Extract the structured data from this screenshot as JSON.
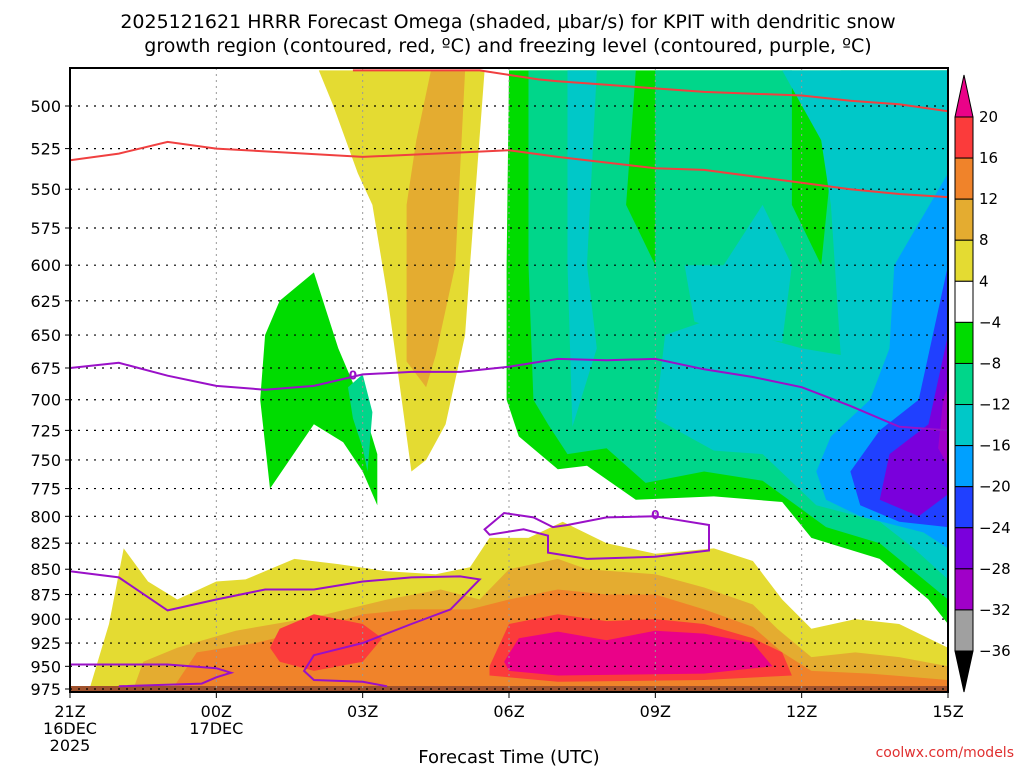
{
  "chart_data": {
    "type": "heatmap",
    "title_lines": [
      "2025121621 HRRR Forecast Omega (shaded, µbar/s) for KPIT with dendritic snow",
      "growth region (contoured, red, ºC) and freezing level (contoured, purple, ºC)"
    ],
    "xlabel": "Forecast Time (UTC)",
    "ylabel": "",
    "x_ticks": [
      {
        "hour": 0,
        "label": [
          "21Z",
          "16DEC",
          "2025"
        ]
      },
      {
        "hour": 3,
        "label": [
          "00Z",
          "17DEC"
        ]
      },
      {
        "hour": 6,
        "label": [
          "03Z"
        ]
      },
      {
        "hour": 9,
        "label": [
          "06Z"
        ]
      },
      {
        "hour": 12,
        "label": [
          "09Z"
        ]
      },
      {
        "hour": 15,
        "label": [
          "12Z"
        ]
      },
      {
        "hour": 18,
        "label": [
          "15Z"
        ]
      }
    ],
    "x_range_hours": [
      0,
      18
    ],
    "y_ticks": [
      500,
      525,
      550,
      575,
      600,
      625,
      650,
      675,
      700,
      725,
      750,
      775,
      800,
      825,
      850,
      875,
      900,
      925,
      950,
      975
    ],
    "y_range_hPa": [
      480,
      990
    ],
    "y_axis": "pressure (hPa), inverted, log scale",
    "grid": true,
    "colorbar": {
      "placement": "right",
      "levels": [
        -36,
        -32,
        -28,
        -24,
        -20,
        -16,
        -12,
        -8,
        -4,
        4,
        8,
        12,
        16,
        20
      ],
      "tick_labels": [
        "20",
        "16",
        "12",
        "8",
        "4",
        "−4",
        "−8",
        "−12",
        "−16",
        "−20",
        "−24",
        "−28",
        "−32",
        "−36"
      ],
      "colors": {
        "above_20": "#ea0288",
        "16_20": "#fb3b3b",
        "12_16": "#f0832a",
        "8_12": "#e4ac30",
        "4_8": "#e4db32",
        "-4_4": "#ffffff",
        "-8_-4": "#00dc00",
        "-12_-8": "#00d68a",
        "-16_-12": "#00c8c8",
        "-20_-16": "#00a0ff",
        "-24_-20": "#2040ff",
        "-28_-24": "#7a00dc",
        "-32_-28": "#a000c8",
        "-36_-32": "#a0a0a0",
        "below_-36": "#000000"
      }
    },
    "terrain_color": "#a0522d",
    "omega_regions": [
      {
        "name": "upper-ascent-positive-plume",
        "levels": [
          "4_8",
          "8_12"
        ],
        "hours": [
          5.0,
          8.6
        ],
        "pressure": [
          480,
          740
        ]
      },
      {
        "name": "upper-descent-green-cell",
        "levels": [
          "-8_-4",
          "-12_-8"
        ],
        "hours": [
          3.8,
          6.6
        ],
        "pressure": [
          620,
          785
        ]
      },
      {
        "name": "upper-right-descent-area",
        "levels": [
          "-8_-4",
          "-12_-8",
          "-16_-12",
          "-20_-16",
          "-24_-20",
          "-28_-24",
          "-32_-28"
        ],
        "hours": [
          8.9,
          18
        ],
        "pressure": [
          480,
          900
        ]
      },
      {
        "name": "low-level-ascent-left",
        "levels": [
          "4_8",
          "8_12",
          "12_16",
          "16_20"
        ],
        "hours": [
          0.5,
          9.0
        ],
        "pressure": [
          815,
          975
        ]
      },
      {
        "name": "low-level-ascent-right",
        "levels": [
          "4_8",
          "8_12",
          "12_16",
          "16_20",
          "above_20"
        ],
        "hours": [
          8.6,
          18
        ],
        "pressure": [
          800,
          975
        ]
      }
    ],
    "dendritic_growth_contours": [
      {
        "name": "-12C",
        "color": "#f04040",
        "points": [
          [
            0,
            532
          ],
          [
            1,
            528
          ],
          [
            2,
            521
          ],
          [
            3,
            525
          ],
          [
            6,
            530
          ],
          [
            9,
            526
          ],
          [
            10,
            530
          ],
          [
            12,
            537
          ],
          [
            13,
            538
          ],
          [
            15,
            546
          ],
          [
            16,
            550
          ],
          [
            17,
            553
          ],
          [
            18,
            555
          ]
        ]
      },
      {
        "name": "-18C",
        "color": "#f04040",
        "points": [
          [
            5.8,
            480
          ],
          [
            8.4,
            480
          ],
          [
            9.6,
            485
          ],
          [
            10,
            486
          ],
          [
            11,
            488
          ],
          [
            12,
            490
          ],
          [
            13,
            492
          ],
          [
            15,
            494
          ],
          [
            16,
            497
          ],
          [
            17,
            499
          ],
          [
            18,
            503
          ]
        ]
      }
    ],
    "freezing_level_contours": [
      {
        "name": "0C upper",
        "color": "#9a10c8",
        "label": "0",
        "points": [
          [
            0,
            675
          ],
          [
            1,
            671
          ],
          [
            2,
            681
          ],
          [
            3,
            689
          ],
          [
            4,
            692
          ],
          [
            5,
            689
          ],
          [
            6,
            680
          ],
          [
            7,
            678
          ],
          [
            8,
            678
          ],
          [
            9,
            674
          ],
          [
            10,
            668
          ],
          [
            11,
            669
          ],
          [
            12,
            668
          ],
          [
            13,
            676
          ],
          [
            14,
            682
          ],
          [
            15,
            690
          ],
          [
            16,
            705
          ],
          [
            17,
            722
          ],
          [
            18,
            725
          ]
        ]
      },
      {
        "name": "0C lower-left",
        "color": "#9a10c8",
        "points": [
          [
            0,
            852
          ],
          [
            1,
            858
          ],
          [
            2,
            891
          ],
          [
            3,
            880
          ],
          [
            4,
            870
          ],
          [
            5,
            870
          ],
          [
            6,
            862
          ],
          [
            7,
            858
          ],
          [
            8,
            857
          ],
          [
            8.4,
            860
          ],
          [
            7.8,
            890
          ],
          [
            7,
            905
          ],
          [
            6,
            925
          ],
          [
            5,
            938
          ],
          [
            4.8,
            955
          ],
          [
            5,
            965
          ],
          [
            6,
            967
          ],
          [
            6.5,
            972
          ]
        ]
      },
      {
        "name": "0C near-surface",
        "color": "#9a10c8",
        "points": [
          [
            0,
            948
          ],
          [
            2,
            948
          ],
          [
            3,
            952
          ],
          [
            3.3,
            957
          ],
          [
            3,
            962
          ],
          [
            2.7,
            969
          ],
          [
            1,
            972
          ]
        ]
      },
      {
        "name": "0C low-right loop",
        "color": "#9a10c8",
        "label": "0",
        "points": [
          [
            12,
            800
          ],
          [
            13.1,
            808
          ],
          [
            13.1,
            832
          ],
          [
            12,
            838
          ],
          [
            10.6,
            840
          ],
          [
            9.8,
            834
          ],
          [
            9.8,
            818
          ],
          [
            9.3,
            812
          ],
          [
            8.6,
            817
          ],
          [
            8.5,
            812
          ],
          [
            8.9,
            797
          ],
          [
            9.5,
            801
          ],
          [
            9.9,
            810
          ],
          [
            10.2,
            808
          ],
          [
            11,
            801
          ],
          [
            12,
            800
          ]
        ]
      }
    ],
    "credit": "coolwx.com/models"
  }
}
